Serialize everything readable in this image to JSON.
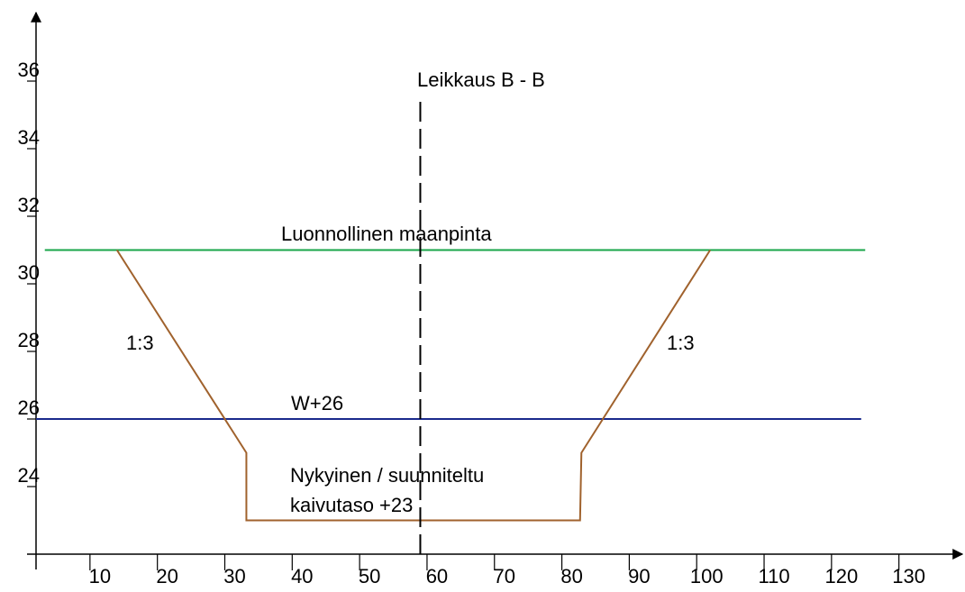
{
  "chart_data": {
    "type": "line",
    "xlim": [
      2,
      139
    ],
    "ylim": [
      22,
      38
    ],
    "xticks": [
      10,
      20,
      30,
      40,
      50,
      60,
      70,
      80,
      90,
      100,
      110,
      120,
      130
    ],
    "yticks": [
      24,
      26,
      28,
      30,
      32,
      34,
      36
    ],
    "series": [
      {
        "color": "#1aa64a",
        "x": [
          3.3,
          125
        ],
        "values": [
          31,
          31
        ]
      },
      {
        "color": "#1a2a8c",
        "x": [
          2,
          124.4
        ],
        "values": [
          26,
          26
        ]
      },
      {
        "color": "#a0622d",
        "x": [
          14,
          33.2,
          33.2,
          82.7,
          82.9,
          102
        ],
        "values": [
          31,
          25,
          23,
          23,
          25,
          31
        ]
      },
      {
        "color": "#000000",
        "dashed": true,
        "x": [
          59,
          59
        ],
        "values": [
          22,
          35.5
        ]
      }
    ],
    "annotations": [
      "Leikkaus B - B",
      "Luonnollinen maanpinta",
      "1:3",
      "1:3",
      "W+26",
      "Nykyinen / suunniteltu",
      "kaivutaso +23"
    ]
  }
}
